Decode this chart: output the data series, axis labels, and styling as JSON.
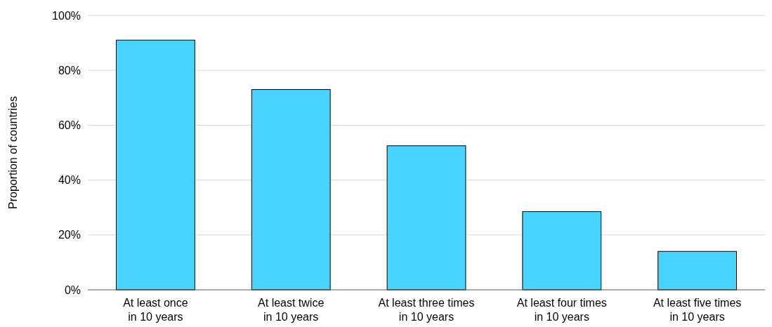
{
  "chart_data": {
    "type": "bar",
    "ylabel": "Proportion of countries",
    "categories": [
      "At least once\nin 10 years",
      "At least twice\nin 10 years",
      "At least three times\nin 10 years",
      "At least four times\nin 10 years",
      "At least five times\nin 10 years"
    ],
    "values": [
      91,
      73,
      52.5,
      28.5,
      14
    ],
    "color": "#48d4ff",
    "ylim": [
      0,
      100
    ],
    "yticks": [
      {
        "value": 0,
        "label": "0%"
      },
      {
        "value": 20,
        "label": "20%"
      },
      {
        "value": 40,
        "label": "40%"
      },
      {
        "value": 60,
        "label": "60%"
      },
      {
        "value": 80,
        "label": "80%"
      },
      {
        "value": 100,
        "label": "100%"
      }
    ],
    "grid": "y"
  }
}
